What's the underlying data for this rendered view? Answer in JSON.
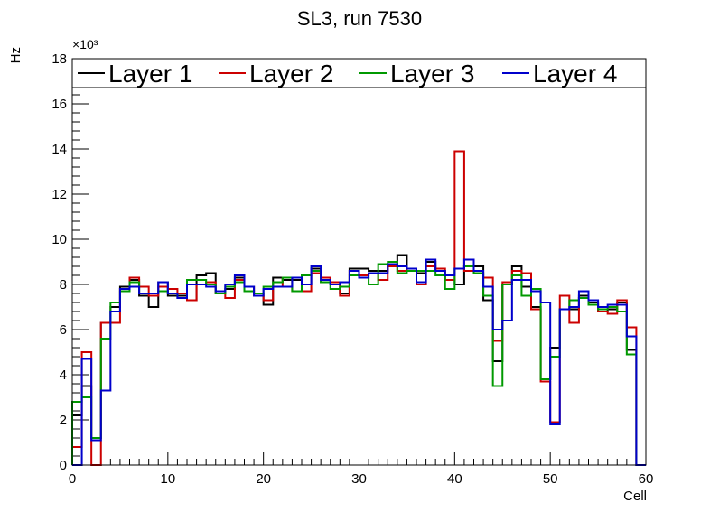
{
  "chart_data": {
    "type": "histogram-step",
    "title": "SL3, run 7530",
    "xlabel": "Cell",
    "ylabel": "Hz",
    "y_multiplier": "×10³",
    "xlim": [
      0,
      60
    ],
    "ylim": [
      0,
      18
    ],
    "xticks": [
      0,
      10,
      20,
      30,
      40,
      50,
      60
    ],
    "yticks": [
      0,
      2,
      4,
      6,
      8,
      10,
      12,
      14,
      16,
      18
    ],
    "legend_position": "top",
    "bin_width": 1,
    "series": [
      {
        "name": "Layer 1",
        "color": "#000000",
        "values": [
          2.2,
          3.5,
          1.2,
          6.3,
          7.0,
          7.9,
          8.2,
          7.5,
          7.0,
          8.1,
          7.5,
          7.5,
          7.3,
          8.4,
          8.5,
          7.6,
          7.8,
          8.3,
          7.9,
          7.6,
          7.1,
          8.3,
          8.2,
          8.2,
          8.0,
          8.7,
          8.1,
          8.0,
          7.6,
          8.7,
          8.7,
          8.6,
          8.6,
          8.8,
          9.3,
          8.7,
          8.5,
          9.0,
          8.6,
          8.2,
          8.0,
          8.8,
          8.8,
          7.3,
          4.6,
          8.0,
          8.8,
          7.9,
          7.0,
          3.8,
          5.2,
          6.9,
          6.9,
          7.5,
          7.2,
          6.8,
          6.9,
          7.2,
          5.1,
          0
        ]
      },
      {
        "name": "Layer 2",
        "color": "#cc0000",
        "values": [
          0.8,
          5.0,
          0,
          6.3,
          6.3,
          7.8,
          8.3,
          7.9,
          7.5,
          7.9,
          7.8,
          7.6,
          7.3,
          8.0,
          8.1,
          7.6,
          7.4,
          8.2,
          7.9,
          7.5,
          7.3,
          7.9,
          8.3,
          7.7,
          7.7,
          8.5,
          8.3,
          8.1,
          7.5,
          8.6,
          8.4,
          8.5,
          8.2,
          8.8,
          8.6,
          8.7,
          8.0,
          8.8,
          8.7,
          8.2,
          13.9,
          8.6,
          8.5,
          8.3,
          5.5,
          8.1,
          8.6,
          8.5,
          6.9,
          3.7,
          1.9,
          7.5,
          6.3,
          7.4,
          7.1,
          6.8,
          6.7,
          7.3,
          6.1,
          0
        ]
      },
      {
        "name": "Layer 3",
        "color": "#009900",
        "values": [
          2.8,
          3.0,
          1.2,
          5.6,
          7.2,
          7.7,
          8.1,
          7.6,
          7.6,
          7.7,
          7.6,
          7.4,
          8.2,
          8.2,
          8.0,
          7.6,
          7.9,
          8.1,
          7.7,
          7.6,
          7.9,
          8.1,
          8.3,
          7.7,
          8.4,
          8.6,
          8.1,
          7.8,
          7.9,
          8.4,
          8.3,
          8.0,
          8.9,
          9.0,
          8.5,
          8.6,
          8.6,
          8.6,
          8.4,
          7.8,
          8.7,
          8.8,
          8.5,
          7.5,
          3.5,
          8.0,
          8.4,
          7.5,
          7.8,
          3.8,
          4.8,
          6.9,
          7.3,
          7.4,
          7.1,
          6.9,
          7.0,
          6.8,
          4.9,
          0
        ]
      },
      {
        "name": "Layer 4",
        "color": "#0000cc",
        "values": [
          0,
          4.7,
          1.1,
          3.3,
          6.8,
          7.8,
          7.9,
          7.6,
          7.6,
          8.1,
          7.6,
          7.4,
          8.0,
          8.0,
          7.9,
          7.7,
          8.0,
          8.4,
          7.9,
          7.5,
          7.8,
          7.9,
          7.9,
          8.3,
          8.0,
          8.8,
          8.2,
          8.0,
          8.1,
          8.6,
          8.3,
          8.5,
          8.5,
          8.9,
          8.8,
          8.7,
          8.1,
          9.1,
          8.6,
          8.4,
          8.7,
          9.1,
          8.6,
          7.9,
          6.0,
          6.4,
          8.2,
          8.2,
          7.7,
          7.2,
          1.8,
          6.9,
          7.0,
          7.7,
          7.3,
          7.0,
          7.1,
          7.1,
          5.7,
          0
        ]
      }
    ]
  }
}
